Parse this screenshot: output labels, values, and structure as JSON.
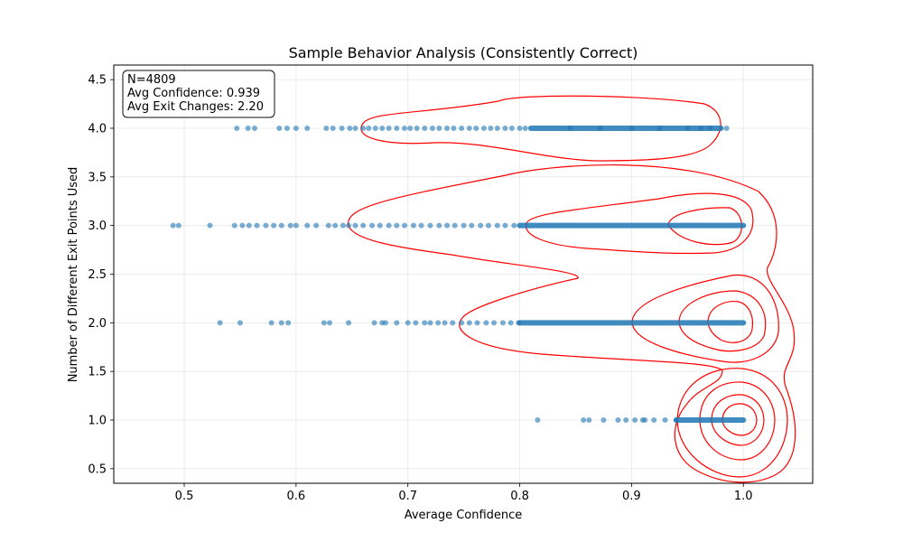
{
  "chart_data": {
    "type": "scatter",
    "title": "Sample Behavior Analysis (Consistently Correct)",
    "xlabel": "Average Confidence",
    "ylabel": "Number of Different Exit Points Used",
    "xlim": [
      0.437,
      1.062
    ],
    "ylim": [
      0.35,
      4.65
    ],
    "xticks": [
      "0.5",
      "0.6",
      "0.7",
      "0.8",
      "0.9",
      "1.0"
    ],
    "yticks": [
      "0.5",
      "1.0",
      "1.5",
      "2.0",
      "2.5",
      "3.0",
      "3.5",
      "4.0",
      "4.5"
    ],
    "grid": true,
    "colors": {
      "points": "#1f77b4",
      "contours": "#ff0000"
    },
    "stats_box": {
      "placement": "top-left",
      "lines": [
        "N=4809",
        "Avg Confidence: 0.939",
        "Avg Exit Changes: 2.20"
      ]
    },
    "series": [
      {
        "y": 4.0,
        "dense_range": [
          0.81,
          0.98
        ],
        "x": [
          0.547,
          0.557,
          0.563,
          0.585,
          0.592,
          0.6,
          0.61,
          0.627,
          0.633,
          0.641,
          0.648,
          0.653,
          0.66,
          0.665,
          0.671,
          0.677,
          0.683,
          0.69,
          0.697,
          0.702,
          0.708,
          0.715,
          0.722,
          0.728,
          0.735,
          0.741,
          0.748,
          0.755,
          0.761,
          0.768,
          0.774,
          0.78,
          0.787,
          0.793,
          0.8,
          0.805,
          0.845,
          0.872,
          0.9,
          0.925,
          0.95,
          0.962,
          0.97,
          0.985
        ]
      },
      {
        "y": 3.0,
        "dense_range": [
          0.8,
          1.0
        ],
        "x": [
          0.49,
          0.495,
          0.523,
          0.545,
          0.552,
          0.558,
          0.565,
          0.573,
          0.58,
          0.587,
          0.595,
          0.6,
          0.61,
          0.618,
          0.629,
          0.635,
          0.642,
          0.647,
          0.653,
          0.66,
          0.668,
          0.675,
          0.683,
          0.69,
          0.697,
          0.705,
          0.712,
          0.72,
          0.728,
          0.735,
          0.742,
          0.75,
          0.757,
          0.765,
          0.772,
          0.78,
          0.787,
          0.795
        ]
      },
      {
        "y": 2.0,
        "dense_range": [
          0.8,
          1.0
        ],
        "x": [
          0.532,
          0.55,
          0.578,
          0.587,
          0.593,
          0.625,
          0.63,
          0.647,
          0.67,
          0.677,
          0.68,
          0.69,
          0.7,
          0.707,
          0.715,
          0.72,
          0.727,
          0.733,
          0.74,
          0.748,
          0.755,
          0.762,
          0.77,
          0.777,
          0.785,
          0.792,
          0.799
        ]
      },
      {
        "y": 1.0,
        "dense_range": [
          0.94,
          1.0
        ],
        "x": [
          0.816,
          0.857,
          0.862,
          0.875,
          0.888,
          0.895,
          0.903,
          0.91,
          0.912,
          0.92,
          0.93,
          0.94
        ]
      }
    ]
  }
}
